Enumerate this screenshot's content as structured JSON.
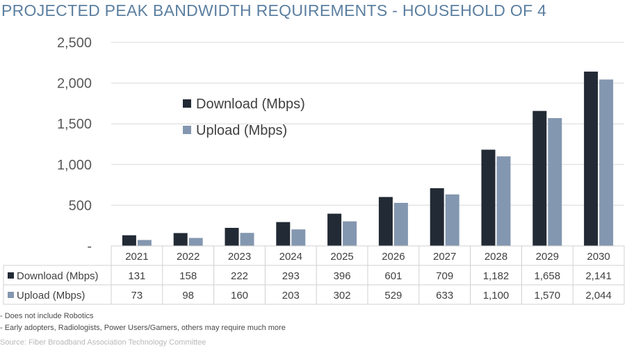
{
  "title": "PROJECTED PEAK BANDWIDTH REQUIREMENTS - HOUSEHOLD OF 4",
  "chart_data": {
    "type": "bar",
    "categories": [
      "2021",
      "2022",
      "2023",
      "2024",
      "2025",
      "2026",
      "2027",
      "2028",
      "2029",
      "2030"
    ],
    "series": [
      {
        "name": "Download (Mbps)",
        "values": [
          131,
          158,
          222,
          293,
          396,
          601,
          709,
          1182,
          1658,
          2141
        ],
        "labels": [
          "131",
          "158",
          "222",
          "293",
          "396",
          "601",
          "709",
          "1,182",
          "1,658",
          "2,141"
        ],
        "color": "#222a35"
      },
      {
        "name": "Upload (Mbps)",
        "values": [
          73,
          98,
          160,
          203,
          302,
          529,
          633,
          1100,
          1570,
          2044
        ],
        "labels": [
          "73",
          "98",
          "160",
          "203",
          "302",
          "529",
          "633",
          "1,100",
          "1,570",
          "2,044"
        ],
        "color": "#8497b0"
      }
    ],
    "ylim": [
      0,
      2500
    ],
    "yticks": [
      0,
      500,
      1000,
      1500,
      2000,
      2500
    ],
    "ytick_labels": [
      "-",
      "500",
      "1,000",
      "1,500",
      "2,000",
      "2,500"
    ],
    "grid": true,
    "legend_position": "top-left",
    "data_table": true
  },
  "footnotes": [
    "- Does not include Robotics",
    "- Early adopters, Radiologists, Power Users/Gamers, others may require much more"
  ],
  "source": "Source: Fiber Broadband Association Technology Committee"
}
